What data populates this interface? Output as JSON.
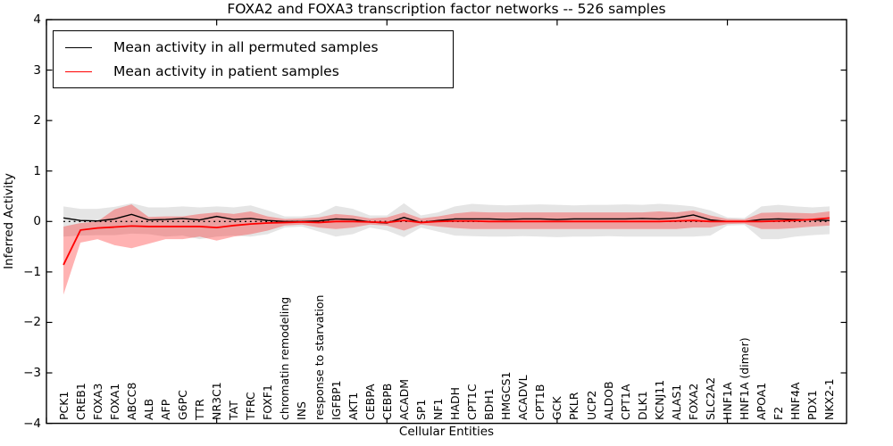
{
  "chart_data": {
    "type": "line",
    "title": "FOXA2 and FOXA3 transcription factor networks -- 526 samples",
    "xlabel": "Cellular Entities",
    "ylabel": "Inferred Activity",
    "ylim": [
      -4,
      4
    ],
    "xlim": [
      0,
      47
    ],
    "grid": false,
    "background": "#ffffff",
    "yticks": [
      {
        "label": "4",
        "value": 4
      },
      {
        "label": "3",
        "value": 3
      },
      {
        "label": "2",
        "value": 2
      },
      {
        "label": "1",
        "value": 1
      },
      {
        "label": "0",
        "value": 0
      },
      {
        "label": "−1",
        "value": -1
      },
      {
        "label": "−2",
        "value": -2
      },
      {
        "label": "−3",
        "value": -3
      },
      {
        "label": "−4",
        "value": -4
      }
    ],
    "xtick_positions": [
      0,
      10,
      20,
      30,
      40
    ],
    "categories": [
      "PCK1",
      "CREB1",
      "FOXA3",
      "FOXA1",
      "ABCC8",
      "ALB",
      "AFP",
      "G6PC",
      "TTR",
      "NR3C1",
      "TAT",
      "TFRC",
      "FOXF1",
      "chromatin remodeling",
      "INS",
      "response to starvation",
      "IGFBP1",
      "AKT1",
      "CEBPA",
      "CEBPB",
      "ACADM",
      "SP1",
      "NF1",
      "HADH",
      "CPT1C",
      "BDH1",
      "HMGCS1",
      "ACADVL",
      "CPT1B",
      "GCK",
      "PKLR",
      "UCP2",
      "ALDOB",
      "CPT1A",
      "DLK1",
      "KCNJ11",
      "ALAS1",
      "FOXA2",
      "SLC2A2",
      "HNF1A",
      "HNF1A (dimer)",
      "APOA1",
      "F2",
      "HNF4A",
      "PDX1",
      "NKX2-1"
    ],
    "legend": {
      "position": "upper left",
      "entries": [
        {
          "label": "Mean activity in all permuted samples",
          "color": "#000000"
        },
        {
          "label": "Mean activity in patient samples",
          "color": "#ff0000"
        }
      ]
    },
    "baseline": {
      "y": 0,
      "style": "dotted",
      "color": "#000000"
    },
    "series": [
      {
        "name": "Mean activity in all permuted samples",
        "color": "#000000",
        "style": "solid",
        "values": [
          0.07,
          0.02,
          0.01,
          0.05,
          0.14,
          0.03,
          0.04,
          0.06,
          0.03,
          0.1,
          0.04,
          0.06,
          0.02,
          0.0,
          0.0,
          0.01,
          0.05,
          0.04,
          -0.01,
          -0.03,
          0.08,
          -0.02,
          0.02,
          0.05,
          0.05,
          0.05,
          0.04,
          0.05,
          0.05,
          0.04,
          0.05,
          0.05,
          0.05,
          0.05,
          0.06,
          0.05,
          0.07,
          0.13,
          0.03,
          0.0,
          0.0,
          0.04,
          0.05,
          0.04,
          0.03,
          0.02
        ]
      },
      {
        "name": "Mean activity in patient samples",
        "color": "#ff0000",
        "style": "solid",
        "values": [
          -0.86,
          -0.17,
          -0.13,
          -0.11,
          -0.09,
          -0.1,
          -0.1,
          -0.1,
          -0.1,
          -0.12,
          -0.08,
          -0.05,
          -0.03,
          -0.02,
          -0.01,
          -0.02,
          0.0,
          0.0,
          -0.01,
          -0.02,
          0.02,
          -0.02,
          0.0,
          0.01,
          0.01,
          0.0,
          0.0,
          0.0,
          0.0,
          0.0,
          0.0,
          0.0,
          0.0,
          0.0,
          0.0,
          0.0,
          0.01,
          0.02,
          0.0,
          0.0,
          0.0,
          0.0,
          0.01,
          0.02,
          0.04,
          0.07
        ]
      }
    ],
    "bands": [
      {
        "name": "permuted samples range",
        "color": "#000000",
        "opacity": 0.1,
        "upper": [
          0.3,
          0.25,
          0.25,
          0.29,
          0.36,
          0.28,
          0.28,
          0.3,
          0.28,
          0.3,
          0.28,
          0.32,
          0.22,
          0.1,
          0.1,
          0.15,
          0.31,
          0.25,
          0.12,
          0.12,
          0.36,
          0.12,
          0.18,
          0.3,
          0.35,
          0.33,
          0.32,
          0.33,
          0.34,
          0.33,
          0.32,
          0.33,
          0.33,
          0.34,
          0.33,
          0.35,
          0.33,
          0.3,
          0.22,
          0.08,
          0.07,
          0.3,
          0.33,
          0.3,
          0.28,
          0.3
        ],
        "lower": [
          -0.3,
          -0.28,
          -0.27,
          -0.27,
          -0.24,
          -0.25,
          -0.3,
          -0.28,
          -0.35,
          -0.3,
          -0.28,
          -0.3,
          -0.25,
          -0.12,
          -0.1,
          -0.2,
          -0.3,
          -0.25,
          -0.12,
          -0.18,
          -0.31,
          -0.12,
          -0.2,
          -0.28,
          -0.29,
          -0.3,
          -0.3,
          -0.29,
          -0.3,
          -0.31,
          -0.3,
          -0.3,
          -0.29,
          -0.3,
          -0.3,
          -0.3,
          -0.3,
          -0.3,
          -0.28,
          -0.08,
          -0.07,
          -0.35,
          -0.35,
          -0.3,
          -0.27,
          -0.25
        ]
      },
      {
        "name": "patient samples range",
        "color": "#ff0000",
        "opacity": 0.3,
        "upper": [
          -0.1,
          -0.03,
          0.0,
          0.24,
          0.34,
          0.09,
          0.1,
          0.1,
          0.15,
          0.18,
          0.15,
          0.2,
          0.1,
          0.05,
          0.06,
          0.08,
          0.15,
          0.12,
          0.06,
          0.08,
          0.18,
          0.06,
          0.1,
          0.16,
          0.19,
          0.18,
          0.18,
          0.18,
          0.18,
          0.18,
          0.18,
          0.18,
          0.18,
          0.18,
          0.18,
          0.2,
          0.18,
          0.22,
          0.12,
          0.05,
          0.04,
          0.17,
          0.18,
          0.17,
          0.16,
          0.2
        ],
        "lower": [
          -1.45,
          -0.42,
          -0.35,
          -0.47,
          -0.53,
          -0.44,
          -0.35,
          -0.35,
          -0.3,
          -0.38,
          -0.3,
          -0.25,
          -0.18,
          -0.08,
          -0.06,
          -0.12,
          -0.15,
          -0.12,
          -0.06,
          -0.08,
          -0.18,
          -0.06,
          -0.1,
          -0.13,
          -0.15,
          -0.15,
          -0.15,
          -0.15,
          -0.15,
          -0.15,
          -0.15,
          -0.15,
          -0.15,
          -0.15,
          -0.15,
          -0.15,
          -0.15,
          -0.12,
          -0.12,
          -0.05,
          -0.04,
          -0.15,
          -0.15,
          -0.13,
          -0.1,
          -0.08
        ]
      }
    ]
  }
}
